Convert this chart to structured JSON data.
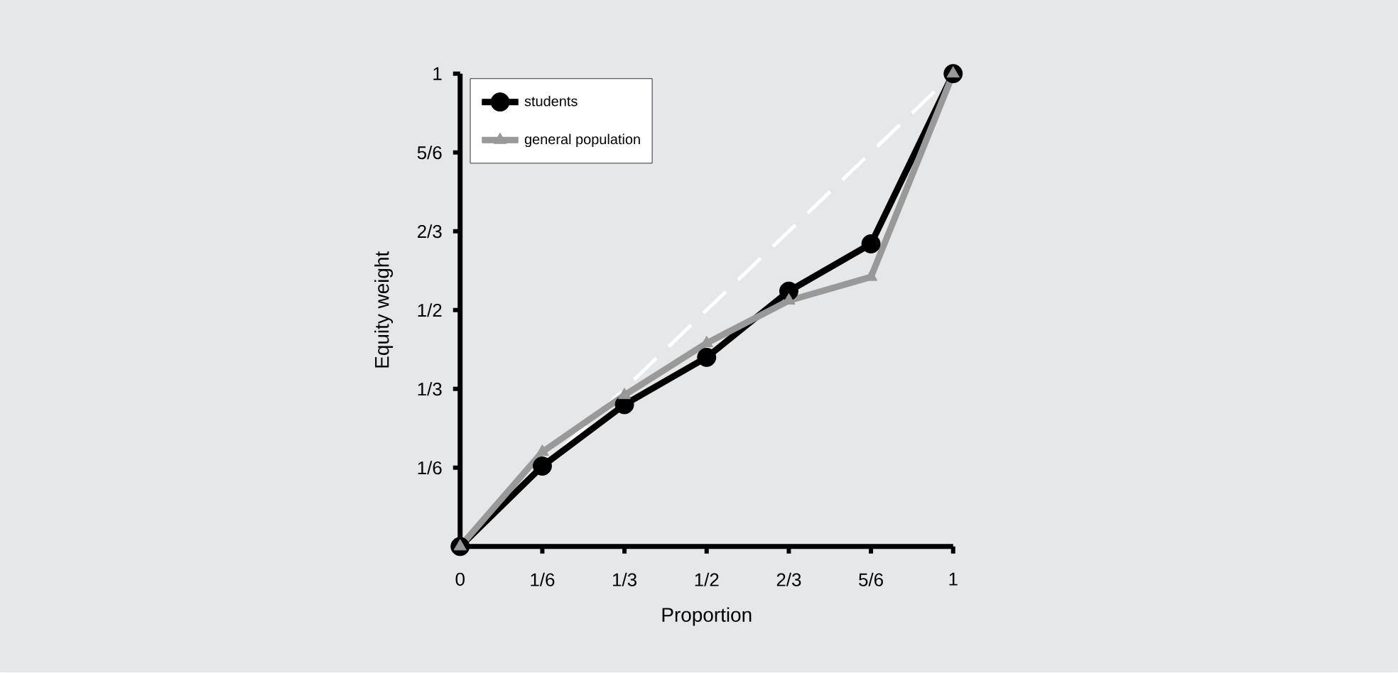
{
  "chart_data": {
    "type": "line",
    "xlabel": "Proportion",
    "ylabel": "Equity weight",
    "x": [
      0,
      0.1667,
      0.3333,
      0.5,
      0.6667,
      0.8333,
      1
    ],
    "series": [
      {
        "name": "students",
        "color": "#000000",
        "marker": "circle",
        "values": [
          0,
          0.17,
          0.3,
          0.4,
          0.54,
          0.64,
          1
        ]
      },
      {
        "name": "general population",
        "color": "#999999",
        "marker": "triangle",
        "values": [
          0,
          0.2,
          0.32,
          0.43,
          0.52,
          0.57,
          1
        ]
      },
      {
        "color": "#ffffff",
        "marker": "none",
        "line_style": "dashed",
        "x": [
          0,
          1
        ],
        "values": [
          0,
          1
        ]
      }
    ],
    "xlim": [
      0,
      1
    ],
    "ylim": [
      0,
      1
    ],
    "xticks": [
      0,
      {
        "value": 0.1667,
        "label": "1/6"
      },
      {
        "value": 0.3333,
        "label": "1/3"
      },
      {
        "value": 0.5,
        "label": "1/2"
      },
      {
        "value": 0.6667,
        "label": "2/3"
      },
      {
        "value": 0.8333,
        "label": "5/6"
      },
      1
    ],
    "yticks": [
      {
        "value": 0,
        "label": null
      },
      {
        "value": 0.1667,
        "label": "1/6"
      },
      {
        "value": 0.3333,
        "label": "1/3"
      },
      {
        "value": 0.5,
        "label": "1/2"
      },
      {
        "value": 0.6667,
        "label": "2/3"
      },
      {
        "value": 0.8333,
        "label": "5/6"
      },
      1
    ],
    "grid": false,
    "legend": "top left"
  }
}
